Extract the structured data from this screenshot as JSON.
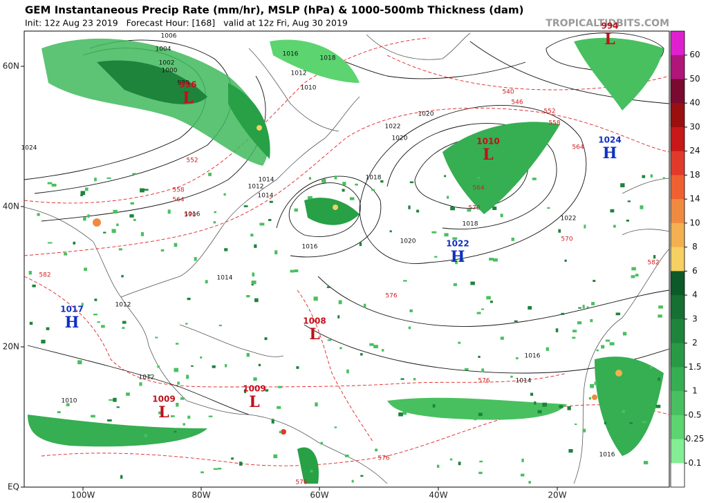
{
  "header": {
    "title": "GEM Instantaneous Precip Rate (mm/hr), MSLP (hPa) & 1000-500mb Thickness (dam)",
    "subtitle": "Init: 12z Aug 23 2019   Forecast Hour: [168]   valid at 12z Fri, Aug 30 2019",
    "watermark": "TROPICALTIDBITS.COM"
  },
  "axes": {
    "latitudes": [
      "60N",
      "40N",
      "20N",
      "EQ"
    ],
    "longitudes": [
      "100W",
      "80W",
      "60W",
      "40W",
      "20W"
    ]
  },
  "colorbar": {
    "ticks": [
      60,
      50,
      40,
      30,
      24,
      18,
      14,
      10,
      8,
      6,
      4,
      3,
      2,
      1.5,
      1,
      0.5,
      0.25,
      0.1
    ],
    "colors": [
      "#e020d0",
      "#b0157a",
      "#7a0a30",
      "#9a1010",
      "#c81818",
      "#e03a2a",
      "#f06030",
      "#f08a40",
      "#f4b050",
      "#f6d060",
      "#0c5a28",
      "#157032",
      "#1e843c",
      "#289a46",
      "#36ae52",
      "#48c060",
      "#5cd470",
      "#84ee94",
      "#ffffff"
    ]
  },
  "systems": [
    {
      "letter": "L",
      "value": "996",
      "color": "#c0101a"
    },
    {
      "letter": "L",
      "value": "1010",
      "color": "#c0101a"
    },
    {
      "letter": "L",
      "value": "994",
      "color": "#c0101a"
    },
    {
      "letter": "H",
      "value": "1024",
      "color": "#1030c0"
    },
    {
      "letter": "H",
      "value": "1022",
      "color": "#1030c0"
    },
    {
      "letter": "H",
      "value": "1017",
      "color": "#1030c0"
    },
    {
      "letter": "L",
      "value": "1008",
      "color": "#c0101a"
    },
    {
      "letter": "L",
      "value": "1009",
      "color": "#c0101a"
    },
    {
      "letter": "L",
      "value": "1009",
      "color": "#c0101a"
    }
  ],
  "isobar_labels": [
    "1006",
    "1004",
    "1002",
    "1000",
    "998",
    "1016",
    "1018",
    "1012",
    "1010",
    "1022",
    "1020",
    "1014",
    "1024",
    "1018",
    "1020",
    "1012",
    "1014",
    "1016",
    "1016",
    "1014",
    "1012",
    "1010",
    "1020",
    "1018",
    "1016",
    "1014",
    "1012",
    "1008",
    "1022",
    "1016"
  ],
  "thickness_labels": [
    "552",
    "558",
    "564",
    "570",
    "576",
    "582",
    "540",
    "546",
    "552",
    "558",
    "564",
    "570",
    "576",
    "576",
    "576",
    "582",
    "564",
    "570"
  ]
}
